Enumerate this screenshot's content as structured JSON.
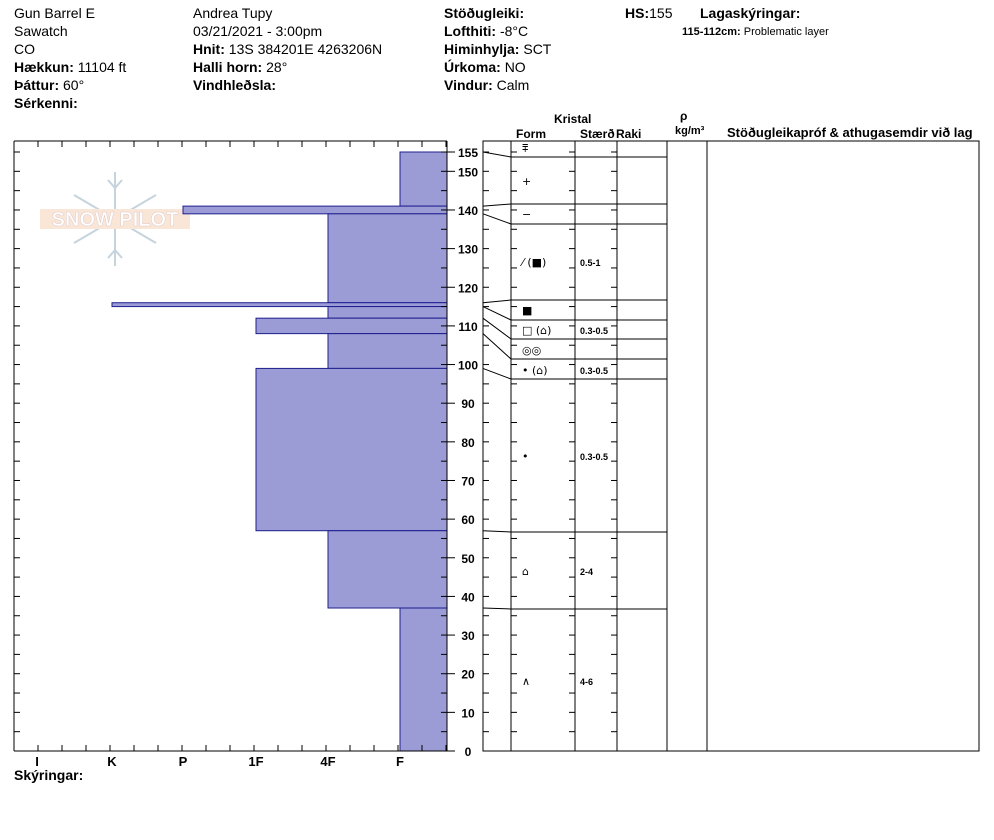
{
  "header": {
    "location": "Gun Barrel E",
    "range": "Sawatch",
    "state": "CO",
    "elevation_label": "Hækkun:",
    "elevation": "11104 ft",
    "aspect_label": "Þáttur:",
    "aspect": "60°",
    "features_label": "Sérkenni:",
    "observer": "Andrea Tupy",
    "datetime": "03/21/2021 - 3:00pm",
    "coords_label": "Hnit:",
    "coords": "13S 384201E 4263206N",
    "slope_label": "Halli horn:",
    "slope": "28°",
    "wind_loading_label": "Vindhleðsla:",
    "stability_label": "Stöðugleiki:",
    "air_temp_label": "Lofthiti:",
    "air_temp": "-8°C",
    "sky_label": "Himinhylja:",
    "sky": "SCT",
    "precip_label": "Úrkoma:",
    "precip": "NO",
    "wind_label": "Vindur:",
    "wind": "Calm",
    "hs_label": "HS:",
    "hs": "155",
    "legend_label": "Lagaskýringar:",
    "legend_range": "115-112cm:",
    "legend_text": "Problematic layer"
  },
  "columns": {
    "crystal": "Kristal",
    "form": "Form",
    "size": "Stærð",
    "moisture": "Raki",
    "rho": "ρ",
    "density_unit": "kg/m³",
    "tests": "Stöðugleikapróf & athugasemdir við lag"
  },
  "footer": {
    "notes_label": "Skýringar:"
  },
  "watermark": "SNOW PILOT",
  "chart_data": {
    "type": "bar",
    "orientation": "horizontal",
    "xlabel": "",
    "ylabel": "",
    "hardness_ticks": [
      "I",
      "K",
      "P",
      "1F",
      "4F",
      "F"
    ],
    "ylim": [
      0,
      155
    ],
    "yticks": [
      0,
      10,
      20,
      30,
      40,
      50,
      60,
      70,
      80,
      90,
      100,
      110,
      120,
      130,
      140,
      150,
      155
    ],
    "layers": [
      {
        "top": 155,
        "bottom": 141,
        "hardness": "F",
        "form": "decomposing-precip",
        "size": ""
      },
      {
        "top": 141,
        "bottom": 139,
        "hardness": "P",
        "form": "",
        "size": ""
      },
      {
        "top": 139,
        "bottom": 116,
        "hardness": "4F",
        "form": "faceted-rounded",
        "size": "0.5-1"
      },
      {
        "top": 116,
        "bottom": 115,
        "hardness": "K",
        "form": "",
        "size": ""
      },
      {
        "top": 115,
        "bottom": 112,
        "hardness": "4F",
        "form": "faceted",
        "size": ""
      },
      {
        "top": 112,
        "bottom": 108,
        "hardness": "1F",
        "form": "faceted-depth-hoar",
        "size": "0.3-0.5"
      },
      {
        "top": 108,
        "bottom": 99,
        "hardness": "4F",
        "form": "melt-freeze",
        "size": ""
      },
      {
        "top": 99,
        "bottom": 57,
        "hardness": "1F",
        "form": "rounded",
        "size": "0.3-0.5"
      },
      {
        "top": 57,
        "bottom": 37,
        "hardness": "4F",
        "form": "depth-hoar",
        "size": "2-4"
      },
      {
        "top": 37,
        "bottom": 0,
        "hardness": "F",
        "form": "depth-hoar-chain",
        "size": "4-6"
      }
    ],
    "layer_symbols": [
      {
        "y": 153,
        "symbol": "⩱"
      },
      {
        "y": 149,
        "symbol": "+"
      },
      {
        "y": 140,
        "symbol": "−"
      },
      {
        "y": 128,
        "symbol": "⁄ (■)",
        "size": "0.5-1"
      },
      {
        "y": 115,
        "symbol": "■"
      },
      {
        "y": 110,
        "symbol": "□ (⌂)",
        "size": "0.3-0.5"
      },
      {
        "y": 104,
        "symbol": "◎◎"
      },
      {
        "y": 100,
        "symbol": "• (⌂)",
        "size": "0.3-0.5"
      },
      {
        "y": 78,
        "symbol": "•",
        "size": "0.3-0.5"
      },
      {
        "y": 47,
        "symbol": "⌂",
        "size": "2-4"
      },
      {
        "y": 18,
        "symbol": "∧",
        "size": "4-6"
      }
    ]
  }
}
